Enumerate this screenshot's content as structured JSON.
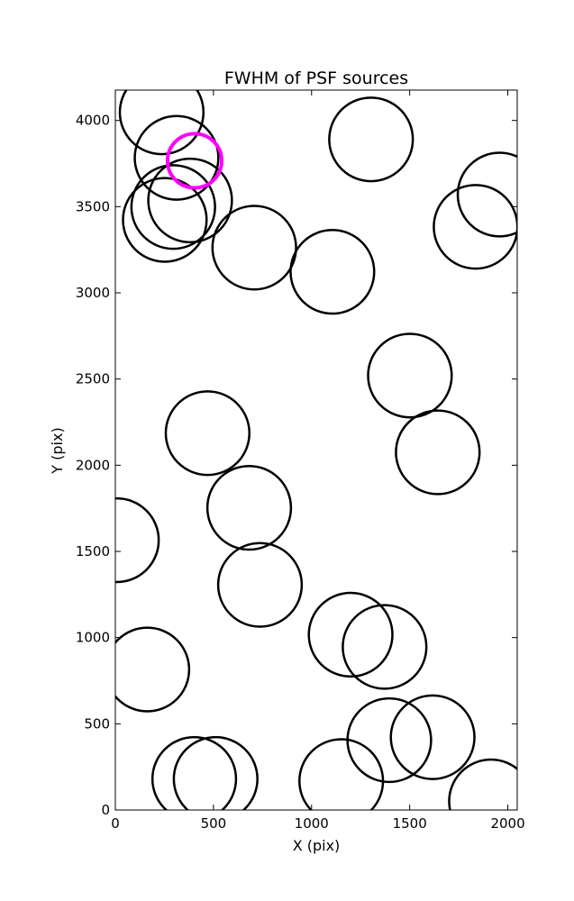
{
  "chart_data": {
    "type": "scatter",
    "title": "FWHM of PSF sources",
    "xlabel": "X (pix)",
    "ylabel": "Y (pix)",
    "xlim": [
      0,
      2048
    ],
    "ylim": [
      0,
      4176
    ],
    "xticks": [
      0,
      500,
      1000,
      1500,
      2000
    ],
    "yticks": [
      0,
      500,
      1000,
      1500,
      2000,
      2500,
      3000,
      3500,
      4000
    ],
    "grid": false,
    "marker_color": "#000000",
    "highlight_color": "#ff00ff",
    "sources": [
      {
        "x": 236,
        "y": 4047,
        "fwhm": 213
      },
      {
        "x": 312,
        "y": 3783,
        "fwhm": 213
      },
      {
        "x": 381,
        "y": 3536,
        "fwhm": 213
      },
      {
        "x": 295,
        "y": 3498,
        "fwhm": 213
      },
      {
        "x": 252,
        "y": 3423,
        "fwhm": 213
      },
      {
        "x": 708,
        "y": 3262,
        "fwhm": 213
      },
      {
        "x": 1106,
        "y": 3122,
        "fwhm": 213
      },
      {
        "x": 1303,
        "y": 3890,
        "fwhm": 213
      },
      {
        "x": 1958,
        "y": 3570,
        "fwhm": 213
      },
      {
        "x": 1836,
        "y": 3383,
        "fwhm": 213
      },
      {
        "x": 1501,
        "y": 2520,
        "fwhm": 213
      },
      {
        "x": 1643,
        "y": 2075,
        "fwhm": 213
      },
      {
        "x": 470,
        "y": 2186,
        "fwhm": 213
      },
      {
        "x": 682,
        "y": 1753,
        "fwhm": 213
      },
      {
        "x": 8,
        "y": 1565,
        "fwhm": 213
      },
      {
        "x": 737,
        "y": 1306,
        "fwhm": 213
      },
      {
        "x": 1199,
        "y": 1017,
        "fwhm": 213
      },
      {
        "x": 1372,
        "y": 946,
        "fwhm": 213
      },
      {
        "x": 163,
        "y": 815,
        "fwhm": 213
      },
      {
        "x": 1396,
        "y": 405,
        "fwhm": 213
      },
      {
        "x": 1617,
        "y": 422,
        "fwhm": 213
      },
      {
        "x": 1914,
        "y": 50,
        "fwhm": 213
      },
      {
        "x": 1151,
        "y": 168,
        "fwhm": 213
      },
      {
        "x": 402,
        "y": 180,
        "fwhm": 213
      },
      {
        "x": 511,
        "y": 180,
        "fwhm": 213
      },
      {
        "x": 404,
        "y": 3766,
        "fwhm": 138,
        "highlight": true
      }
    ]
  }
}
